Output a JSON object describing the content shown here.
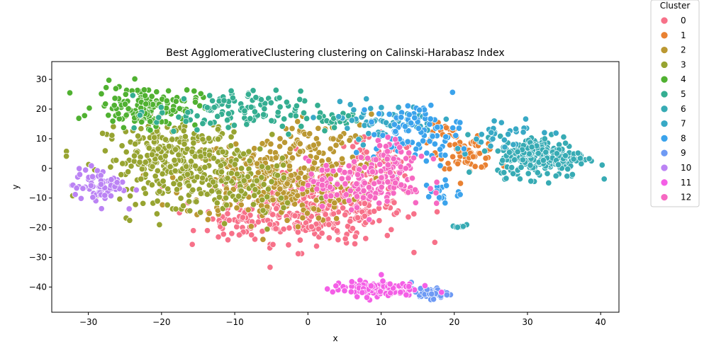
{
  "chart_data": {
    "type": "scatter",
    "title": "Best AgglomerativeClustering clustering on Calinski-Harabasz Index",
    "xlabel": "x",
    "ylabel": "y",
    "xlim": [
      -35,
      42.5
    ],
    "ylim": [
      -48.5,
      36
    ],
    "xticks": [
      -30,
      -20,
      -10,
      0,
      10,
      20,
      30,
      40
    ],
    "yticks": [
      -40,
      -30,
      -20,
      -10,
      0,
      10,
      20,
      30
    ],
    "grid": false,
    "legend": {
      "title": "Cluster",
      "placement": "outside-right",
      "entries": [
        "0",
        "1",
        "2",
        "3",
        "4",
        "5",
        "6",
        "7",
        "8",
        "9",
        "10",
        "11",
        "12"
      ]
    },
    "colors": [
      "#f77189",
      "#e98132",
      "#bb9832",
      "#97a431",
      "#50b131",
      "#34ae91",
      "#37abb4",
      "#38a9c5",
      "#3ba3ec",
      "#6e9af4",
      "#bb83f4",
      "#f45fe6",
      "#f668c2"
    ],
    "series": [
      {
        "name": "0",
        "clusters": [
          {
            "cx": 1,
            "cy": -13,
            "sx": 6,
            "sy": 6,
            "n": 380
          },
          {
            "cx": 9,
            "cy": 0,
            "sx": 3,
            "sy": 5,
            "n": 60
          },
          {
            "cx": -9,
            "cy": -18,
            "sx": 3,
            "sy": 3,
            "n": 40
          }
        ]
      },
      {
        "name": "1",
        "clusters": [
          {
            "cx": 22,
            "cy": 5,
            "sx": 2,
            "sy": 2.5,
            "n": 60
          },
          {
            "cx": 18,
            "cy": 12,
            "sx": 1.5,
            "sy": 2,
            "n": 15
          }
        ]
      },
      {
        "name": "2",
        "clusters": [
          {
            "cx": -5,
            "cy": -4,
            "sx": 6,
            "sy": 7,
            "n": 320
          },
          {
            "cx": 2,
            "cy": 8,
            "sx": 4,
            "sy": 5,
            "n": 60
          }
        ]
      },
      {
        "name": "3",
        "clusters": [
          {
            "cx": -18,
            "cy": 3,
            "sx": 5,
            "sy": 7,
            "n": 320
          },
          {
            "cx": -10,
            "cy": -8,
            "sx": 4,
            "sy": 5,
            "n": 80
          }
        ]
      },
      {
        "name": "4",
        "clusters": [
          {
            "cx": -22,
            "cy": 21,
            "sx": 3.5,
            "sy": 3.5,
            "n": 140
          }
        ]
      },
      {
        "name": "5",
        "clusters": [
          {
            "cx": -11,
            "cy": 19,
            "sx": 5,
            "sy": 3.5,
            "n": 120
          },
          {
            "cx": 4,
            "cy": 17,
            "sx": 3,
            "sy": 2,
            "n": 25
          }
        ]
      },
      {
        "name": "6",
        "clusters": [
          {
            "cx": 32,
            "cy": 4,
            "sx": 3,
            "sy": 3.5,
            "n": 240
          },
          {
            "cx": 20.5,
            "cy": -19.5,
            "sx": 0.5,
            "sy": 0.5,
            "n": 8
          }
        ]
      },
      {
        "name": "7",
        "clusters": [
          {
            "cx": 10,
            "cy": 16,
            "sx": 4,
            "sy": 3,
            "n": 60
          },
          {
            "cx": 26,
            "cy": 12,
            "sx": 3,
            "sy": 3,
            "n": 30
          }
        ]
      },
      {
        "name": "8",
        "clusters": [
          {
            "cx": 15,
            "cy": 12,
            "sx": 3,
            "sy": 5,
            "n": 90
          },
          {
            "cx": 18,
            "cy": -8,
            "sx": 1.5,
            "sy": 2,
            "n": 20
          }
        ]
      },
      {
        "name": "9",
        "clusters": [
          {
            "cx": 16.5,
            "cy": -42,
            "sx": 1.2,
            "sy": 1,
            "n": 45
          }
        ]
      },
      {
        "name": "10",
        "clusters": [
          {
            "cx": -28.5,
            "cy": -6,
            "sx": 1.8,
            "sy": 3,
            "n": 70
          }
        ]
      },
      {
        "name": "11",
        "clusters": [
          {
            "cx": 9,
            "cy": -40.5,
            "sx": 2.8,
            "sy": 1.3,
            "n": 120
          }
        ]
      },
      {
        "name": "12",
        "clusters": [
          {
            "cx": 8,
            "cy": -5,
            "sx": 4,
            "sy": 4,
            "n": 150
          },
          {
            "cx": 12,
            "cy": 4,
            "sx": 2,
            "sy": 3,
            "n": 40
          }
        ]
      }
    ]
  }
}
